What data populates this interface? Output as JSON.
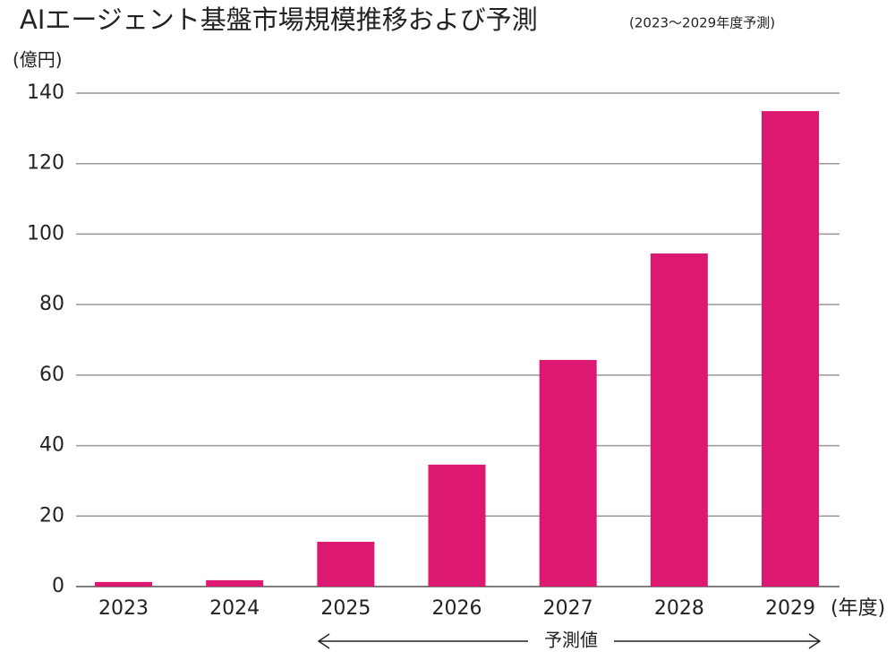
{
  "chart_data": {
    "type": "bar",
    "title": "AIエージェント基盤市場規模推移および予測",
    "subtitle": "(2023～2029年度予測)",
    "y_label": "(億円)",
    "x_label": "(年度)",
    "annotation": "予測値",
    "categories": [
      "2023",
      "2024",
      "2025",
      "2026",
      "2027",
      "2028",
      "2029"
    ],
    "values": [
      1.3,
      1.8,
      12.7,
      34.6,
      64.3,
      94.5,
      134.9
    ],
    "color": "#dc1870",
    "ylim": [
      0,
      140
    ],
    "yticks": [
      0,
      20,
      40,
      60,
      80,
      100,
      120,
      140
    ],
    "grid": true
  }
}
